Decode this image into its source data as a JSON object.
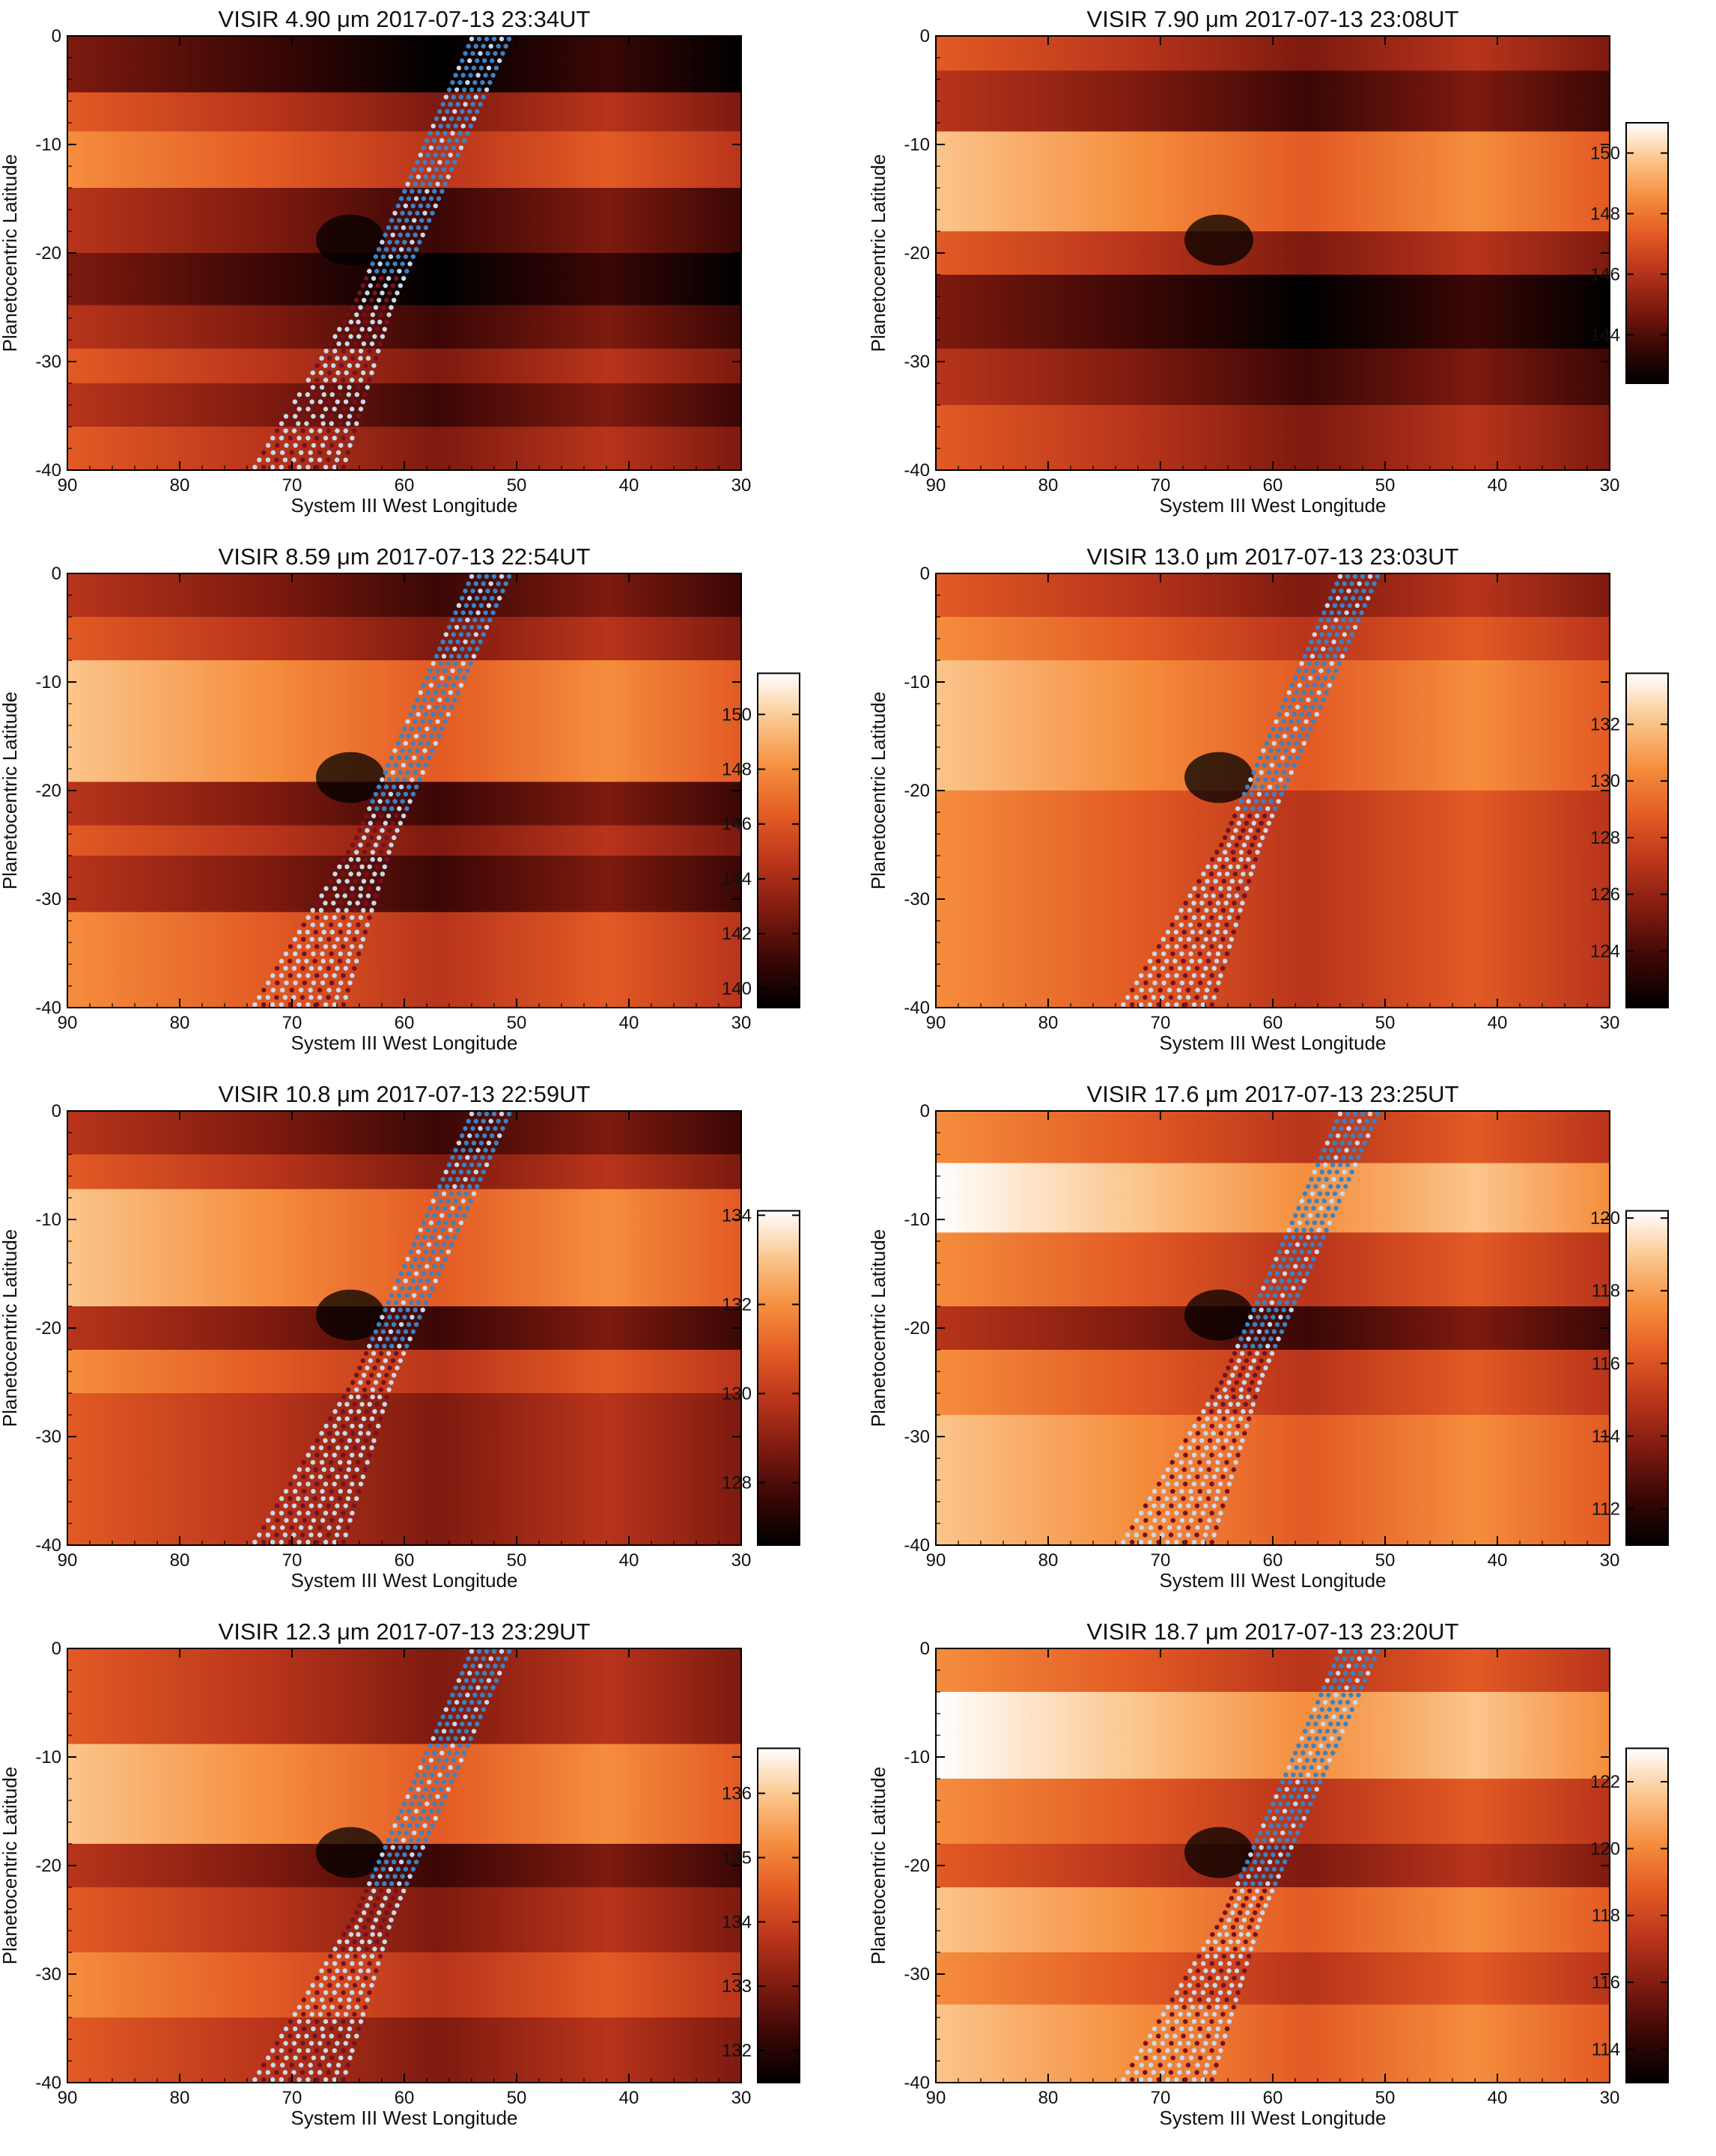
{
  "figure_title": "",
  "colors": {
    "heat_map": [
      "#000000",
      "#3a0705",
      "#7d1a0f",
      "#b8341b",
      "#e25a24",
      "#f58d3d",
      "#fbc58b",
      "#ffffff"
    ],
    "overlay_points": [
      "#7a0f1e",
      "#c9d9ea",
      "#3a82c4"
    ],
    "frame": "#000000"
  },
  "chart_data": [
    {
      "type": "heatmap",
      "title": "VISIR 4.90 μm 2017-07-13 23:34UT",
      "xlabel": "System III West Longitude",
      "ylabel": "Planetocentric Latitude",
      "xlim": [
        90,
        30
      ],
      "ylim": [
        -40,
        0
      ],
      "xticks": [
        "90",
        "80",
        "70",
        "60",
        "50",
        "40",
        "30"
      ],
      "yticks": [
        "0",
        "-10",
        "-20",
        "-30",
        "-40"
      ],
      "colorbar": null,
      "overlay": "point-track"
    },
    {
      "type": "heatmap",
      "title": "VISIR 7.90 μm 2017-07-13 23:08UT",
      "xlabel": "System III West Longitude",
      "ylabel": "Planetocentric Latitude",
      "xlim": [
        90,
        30
      ],
      "ylim": [
        -40,
        0
      ],
      "xticks": [
        "90",
        "80",
        "70",
        "60",
        "50",
        "40",
        "30"
      ],
      "yticks": [
        "0",
        "-10",
        "-20",
        "-30",
        "-40"
      ],
      "colorbar": {
        "range": [
          142.4,
          151
        ],
        "ticks": [
          "150",
          "148",
          "146",
          "144"
        ],
        "tick_values": [
          150,
          148,
          146,
          144
        ]
      },
      "overlay": null
    },
    {
      "type": "heatmap",
      "title": "VISIR 8.59 μm 2017-07-13 22:54UT",
      "xlabel": "System III West Longitude",
      "ylabel": "Planetocentric Latitude",
      "xlim": [
        90,
        30
      ],
      "ylim": [
        -40,
        0
      ],
      "xticks": [
        "90",
        "80",
        "70",
        "60",
        "50",
        "40",
        "30"
      ],
      "yticks": [
        "0",
        "-10",
        "-20",
        "-30",
        "-40"
      ],
      "colorbar": {
        "range": [
          139.3,
          151.5
        ],
        "ticks": [
          "150",
          "148",
          "146",
          "144",
          "142",
          "140"
        ],
        "tick_values": [
          150,
          148,
          146,
          144,
          142,
          140
        ]
      },
      "overlay": "point-track"
    },
    {
      "type": "heatmap",
      "title": "VISIR 13.0 μm 2017-07-13 23:03UT",
      "xlabel": "System III West Longitude",
      "ylabel": "Planetocentric Latitude",
      "xlim": [
        90,
        30
      ],
      "ylim": [
        -40,
        0
      ],
      "xticks": [
        "90",
        "80",
        "70",
        "60",
        "50",
        "40",
        "30"
      ],
      "yticks": [
        "0",
        "-10",
        "-20",
        "-30",
        "-40"
      ],
      "colorbar": {
        "range": [
          122,
          133.8
        ],
        "ticks": [
          "132",
          "130",
          "128",
          "126",
          "124"
        ],
        "tick_values": [
          132,
          130,
          128,
          126,
          124
        ]
      },
      "overlay": "point-track"
    },
    {
      "type": "heatmap",
      "title": "VISIR 10.8 μm 2017-07-13 22:59UT",
      "xlabel": "System III West Longitude",
      "ylabel": "Planetocentric Latitude",
      "xlim": [
        90,
        30
      ],
      "ylim": [
        -40,
        0
      ],
      "xticks": [
        "90",
        "80",
        "70",
        "60",
        "50",
        "40",
        "30"
      ],
      "yticks": [
        "0",
        "-10",
        "-20",
        "-30",
        "-40"
      ],
      "colorbar": {
        "range": [
          126.6,
          134.1
        ],
        "ticks": [
          "134",
          "132",
          "130",
          "128"
        ],
        "tick_values": [
          134,
          132,
          130,
          128
        ]
      },
      "overlay": "point-track"
    },
    {
      "type": "heatmap",
      "title": "VISIR 17.6 μm 2017-07-13 23:25UT",
      "xlabel": "System III West Longitude",
      "ylabel": "Planetocentric Latitude",
      "xlim": [
        90,
        30
      ],
      "ylim": [
        -40,
        0
      ],
      "xticks": [
        "90",
        "80",
        "70",
        "60",
        "50",
        "40",
        "30"
      ],
      "yticks": [
        "0",
        "-10",
        "-20",
        "-30",
        "-40"
      ],
      "colorbar": {
        "range": [
          111,
          120.2
        ],
        "ticks": [
          "120",
          "118",
          "116",
          "114",
          "112"
        ],
        "tick_values": [
          120,
          118,
          116,
          114,
          112
        ]
      },
      "overlay": "point-track"
    },
    {
      "type": "heatmap",
      "title": "VISIR 12.3 μm 2017-07-13 23:29UT",
      "xlabel": "System III West Longitude",
      "ylabel": "Planetocentric Latitude",
      "xlim": [
        90,
        30
      ],
      "ylim": [
        -40,
        0
      ],
      "xticks": [
        "90",
        "80",
        "70",
        "60",
        "50",
        "40",
        "30"
      ],
      "yticks": [
        "0",
        "-10",
        "-20",
        "-30",
        "-40"
      ],
      "colorbar": {
        "range": [
          131.5,
          136.7
        ],
        "ticks": [
          "136",
          "135",
          "134",
          "133",
          "132"
        ],
        "tick_values": [
          136,
          135,
          134,
          133,
          132
        ]
      },
      "overlay": "point-track"
    },
    {
      "type": "heatmap",
      "title": "VISIR 18.7 μm 2017-07-13 23:20UT",
      "xlabel": "System III West Longitude",
      "ylabel": "Planetocentric Latitude",
      "xlim": [
        90,
        30
      ],
      "ylim": [
        -40,
        0
      ],
      "xticks": [
        "90",
        "80",
        "70",
        "60",
        "50",
        "40",
        "30"
      ],
      "yticks": [
        "0",
        "-10",
        "-20",
        "-30",
        "-40"
      ],
      "colorbar": {
        "range": [
          113,
          123
        ],
        "ticks": [
          "122",
          "120",
          "118",
          "116",
          "114"
        ],
        "tick_values": [
          122,
          120,
          118,
          116,
          114
        ]
      },
      "overlay": "point-track"
    }
  ]
}
